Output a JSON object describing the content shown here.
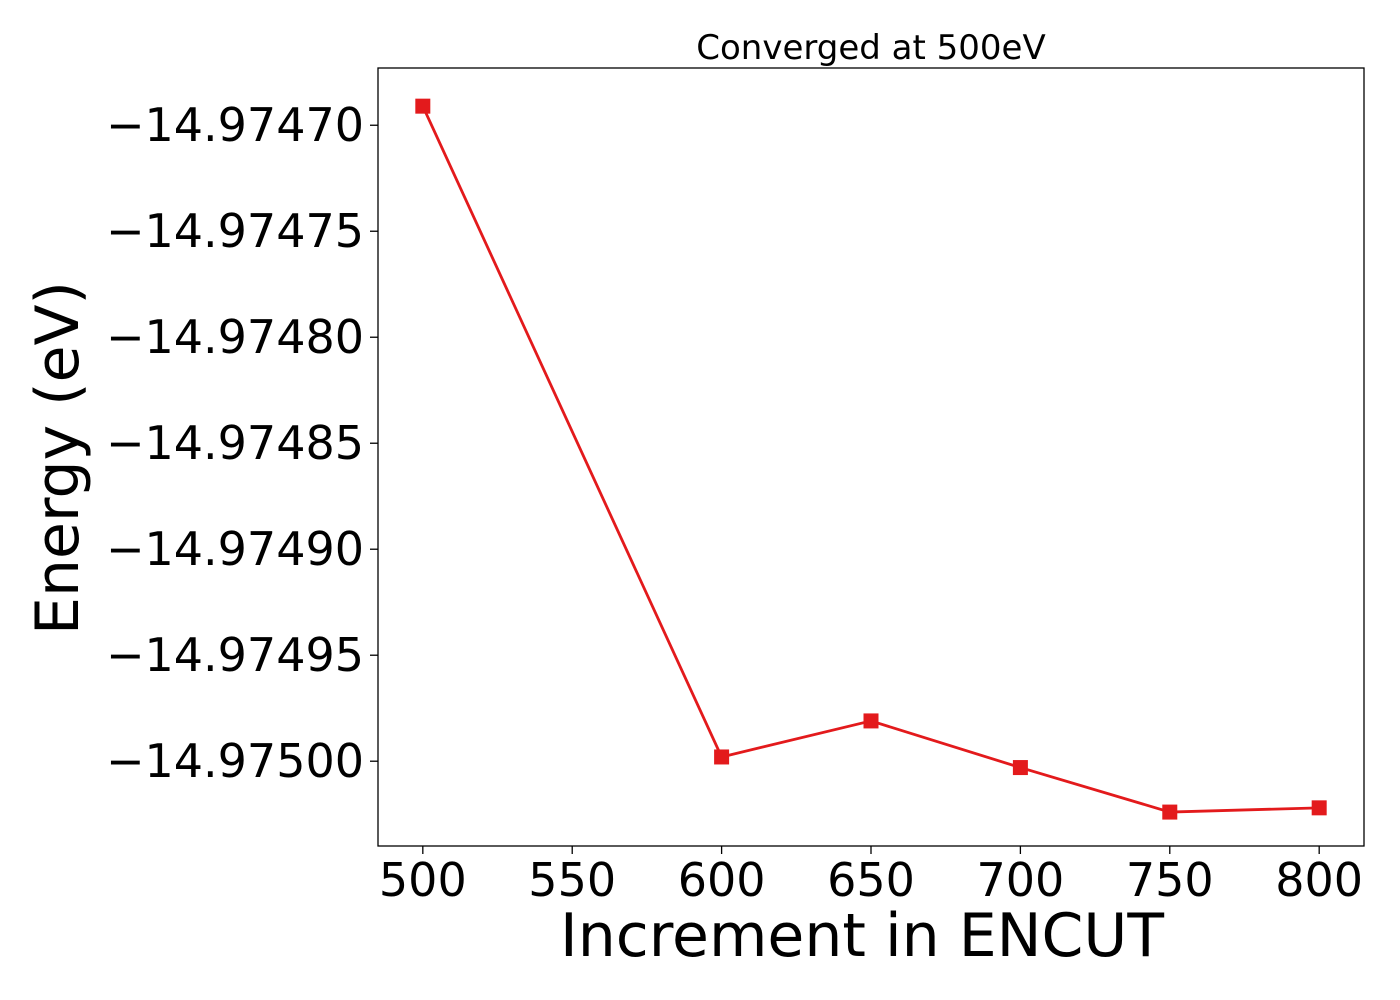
{
  "chart_data": {
    "type": "line",
    "title": "Converged at 500eV",
    "xlabel": "Increment in ENCUT",
    "ylabel": "Energy (eV)",
    "x": [
      500,
      600,
      650,
      700,
      750,
      800
    ],
    "series": [
      {
        "values": [
          -14.974691,
          -14.974998,
          -14.974981,
          -14.975003,
          -14.975024,
          -14.975022
        ],
        "color": "#e31a1c",
        "marker": "square"
      }
    ],
    "xlim": [
      485,
      815
    ],
    "ylim": [
      -14.97504,
      -14.974673
    ],
    "xticks": [
      500,
      550,
      600,
      650,
      700,
      750,
      800
    ],
    "xtick_labels": [
      "500",
      "550",
      "600",
      "650",
      "700",
      "750",
      "800"
    ],
    "yticks": [
      -14.9747,
      -14.97475,
      -14.9748,
      -14.97485,
      -14.9749,
      -14.97495,
      -14.975
    ],
    "ytick_labels": [
      "−14.97470",
      "−14.97475",
      "−14.97480",
      "−14.97485",
      "−14.97490",
      "−14.97495",
      "−14.97500"
    ],
    "grid": false,
    "legend": "none"
  }
}
